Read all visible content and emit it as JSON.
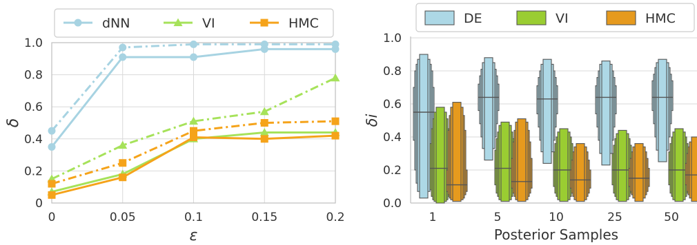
{
  "chart_data": [
    {
      "type": "line",
      "xlabel": "ε",
      "ylabel": "δ",
      "x": [
        0,
        0.05,
        0.1,
        0.15,
        0.2
      ],
      "x_tick_labels": [
        "0",
        "0.05",
        "0.1",
        "0.15",
        "0.2"
      ],
      "xlim": [
        0,
        0.2
      ],
      "ylim": [
        0,
        1.0
      ],
      "y_ticks": [
        "0",
        "0.2",
        "0.4",
        "0.6",
        "0.8",
        "1.0"
      ],
      "grid": true,
      "legend": {
        "position": "top",
        "entries": [
          "dNN",
          "VI",
          "HMC"
        ]
      },
      "series": [
        {
          "name": "dNN",
          "color": "#a7d3e2",
          "marker": "circle",
          "solid": [
            0.35,
            0.91,
            0.91,
            0.96,
            0.96
          ],
          "dashdot": [
            0.45,
            0.97,
            0.99,
            0.99,
            0.99
          ]
        },
        {
          "name": "VI",
          "color": "#a6e25a",
          "marker": "triangle",
          "solid": [
            0.07,
            0.18,
            0.4,
            0.44,
            0.44
          ],
          "dashdot": [
            0.15,
            0.36,
            0.51,
            0.57,
            0.78
          ]
        },
        {
          "name": "HMC",
          "color": "#f5a31a",
          "marker": "square",
          "solid": [
            0.05,
            0.16,
            0.41,
            0.4,
            0.42
          ],
          "dashdot": [
            0.12,
            0.25,
            0.45,
            0.5,
            0.51
          ]
        }
      ]
    },
    {
      "type": "boxen",
      "xlabel": "Posterior Samples",
      "ylabel": "δi",
      "categories": [
        "1",
        "5",
        "10",
        "25",
        "50"
      ],
      "ylim": [
        0,
        1.0
      ],
      "y_ticks": [
        "0.0",
        "0.2",
        "0.4",
        "0.6",
        "0.8",
        "1.0"
      ],
      "grid": true,
      "legend": {
        "position": "top",
        "entries": [
          "DE",
          "VI",
          "HMC"
        ]
      },
      "series": [
        {
          "name": "DE",
          "color": "#add8e6",
          "groups": [
            {
              "median": 0.55,
              "levels": [
                [
                  0.38,
                  0.7
                ],
                [
                  0.2,
                  0.8
                ],
                [
                  0.12,
                  0.84
                ],
                [
                  0.07,
                  0.87
                ],
                [
                  0.03,
                  0.9
                ]
              ]
            },
            {
              "median": 0.64,
              "levels": [
                [
                  0.56,
                  0.72
                ],
                [
                  0.48,
                  0.77
                ],
                [
                  0.4,
                  0.81
                ],
                [
                  0.33,
                  0.85
                ],
                [
                  0.26,
                  0.88
                ]
              ]
            },
            {
              "median": 0.63,
              "levels": [
                [
                  0.54,
                  0.71
                ],
                [
                  0.46,
                  0.76
                ],
                [
                  0.38,
                  0.8
                ],
                [
                  0.31,
                  0.84
                ],
                [
                  0.24,
                  0.87
                ]
              ]
            },
            {
              "median": 0.64,
              "levels": [
                [
                  0.54,
                  0.71
                ],
                [
                  0.46,
                  0.76
                ],
                [
                  0.38,
                  0.8
                ],
                [
                  0.3,
                  0.84
                ],
                [
                  0.23,
                  0.86
                ]
              ]
            },
            {
              "median": 0.64,
              "levels": [
                [
                  0.56,
                  0.74
                ],
                [
                  0.48,
                  0.78
                ],
                [
                  0.4,
                  0.82
                ],
                [
                  0.32,
                  0.85
                ],
                [
                  0.25,
                  0.87
                ]
              ]
            }
          ]
        },
        {
          "name": "VI",
          "color": "#9acd32",
          "groups": [
            {
              "median": 0.21,
              "levels": [
                [
                  0.08,
                  0.36
                ],
                [
                  0.04,
                  0.45
                ],
                [
                  0.02,
                  0.51
                ],
                [
                  0.01,
                  0.55
                ],
                [
                  0.0,
                  0.58
                ]
              ]
            },
            {
              "median": 0.21,
              "levels": [
                [
                  0.11,
                  0.32
                ],
                [
                  0.06,
                  0.39
                ],
                [
                  0.04,
                  0.43
                ],
                [
                  0.02,
                  0.47
                ],
                [
                  0.01,
                  0.49
                ]
              ]
            },
            {
              "median": 0.2,
              "levels": [
                [
                  0.1,
                  0.31
                ],
                [
                  0.06,
                  0.36
                ],
                [
                  0.04,
                  0.4
                ],
                [
                  0.02,
                  0.43
                ],
                [
                  0.01,
                  0.45
                ]
              ]
            },
            {
              "median": 0.2,
              "levels": [
                [
                  0.11,
                  0.3
                ],
                [
                  0.06,
                  0.35
                ],
                [
                  0.04,
                  0.39
                ],
                [
                  0.02,
                  0.42
                ],
                [
                  0.01,
                  0.44
                ]
              ]
            },
            {
              "median": 0.2,
              "levels": [
                [
                  0.11,
                  0.31
                ],
                [
                  0.06,
                  0.36
                ],
                [
                  0.04,
                  0.4
                ],
                [
                  0.02,
                  0.43
                ],
                [
                  0.01,
                  0.45
                ]
              ]
            }
          ]
        },
        {
          "name": "HMC",
          "color": "#e69a1e",
          "groups": [
            {
              "median": 0.11,
              "levels": [
                [
                  0.07,
                  0.2
                ],
                [
                  0.05,
                  0.44
                ],
                [
                  0.03,
                  0.53
                ],
                [
                  0.02,
                  0.58
                ],
                [
                  0.01,
                  0.61
                ]
              ]
            },
            {
              "median": 0.13,
              "levels": [
                [
                  0.09,
                  0.27
                ],
                [
                  0.06,
                  0.37
                ],
                [
                  0.04,
                  0.44
                ],
                [
                  0.02,
                  0.49
                ],
                [
                  0.01,
                  0.51
                ]
              ]
            },
            {
              "median": 0.14,
              "levels": [
                [
                  0.09,
                  0.2
                ],
                [
                  0.06,
                  0.26
                ],
                [
                  0.04,
                  0.31
                ],
                [
                  0.02,
                  0.34
                ],
                [
                  0.01,
                  0.36
                ]
              ]
            },
            {
              "median": 0.15,
              "levels": [
                [
                  0.1,
                  0.21
                ],
                [
                  0.07,
                  0.27
                ],
                [
                  0.05,
                  0.31
                ],
                [
                  0.03,
                  0.34
                ],
                [
                  0.01,
                  0.36
                ]
              ]
            },
            {
              "median": 0.17,
              "levels": [
                [
                  0.11,
                  0.24
                ],
                [
                  0.07,
                  0.3
                ],
                [
                  0.05,
                  0.34
                ],
                [
                  0.03,
                  0.37
                ],
                [
                  0.01,
                  0.4
                ]
              ]
            }
          ]
        }
      ]
    }
  ]
}
